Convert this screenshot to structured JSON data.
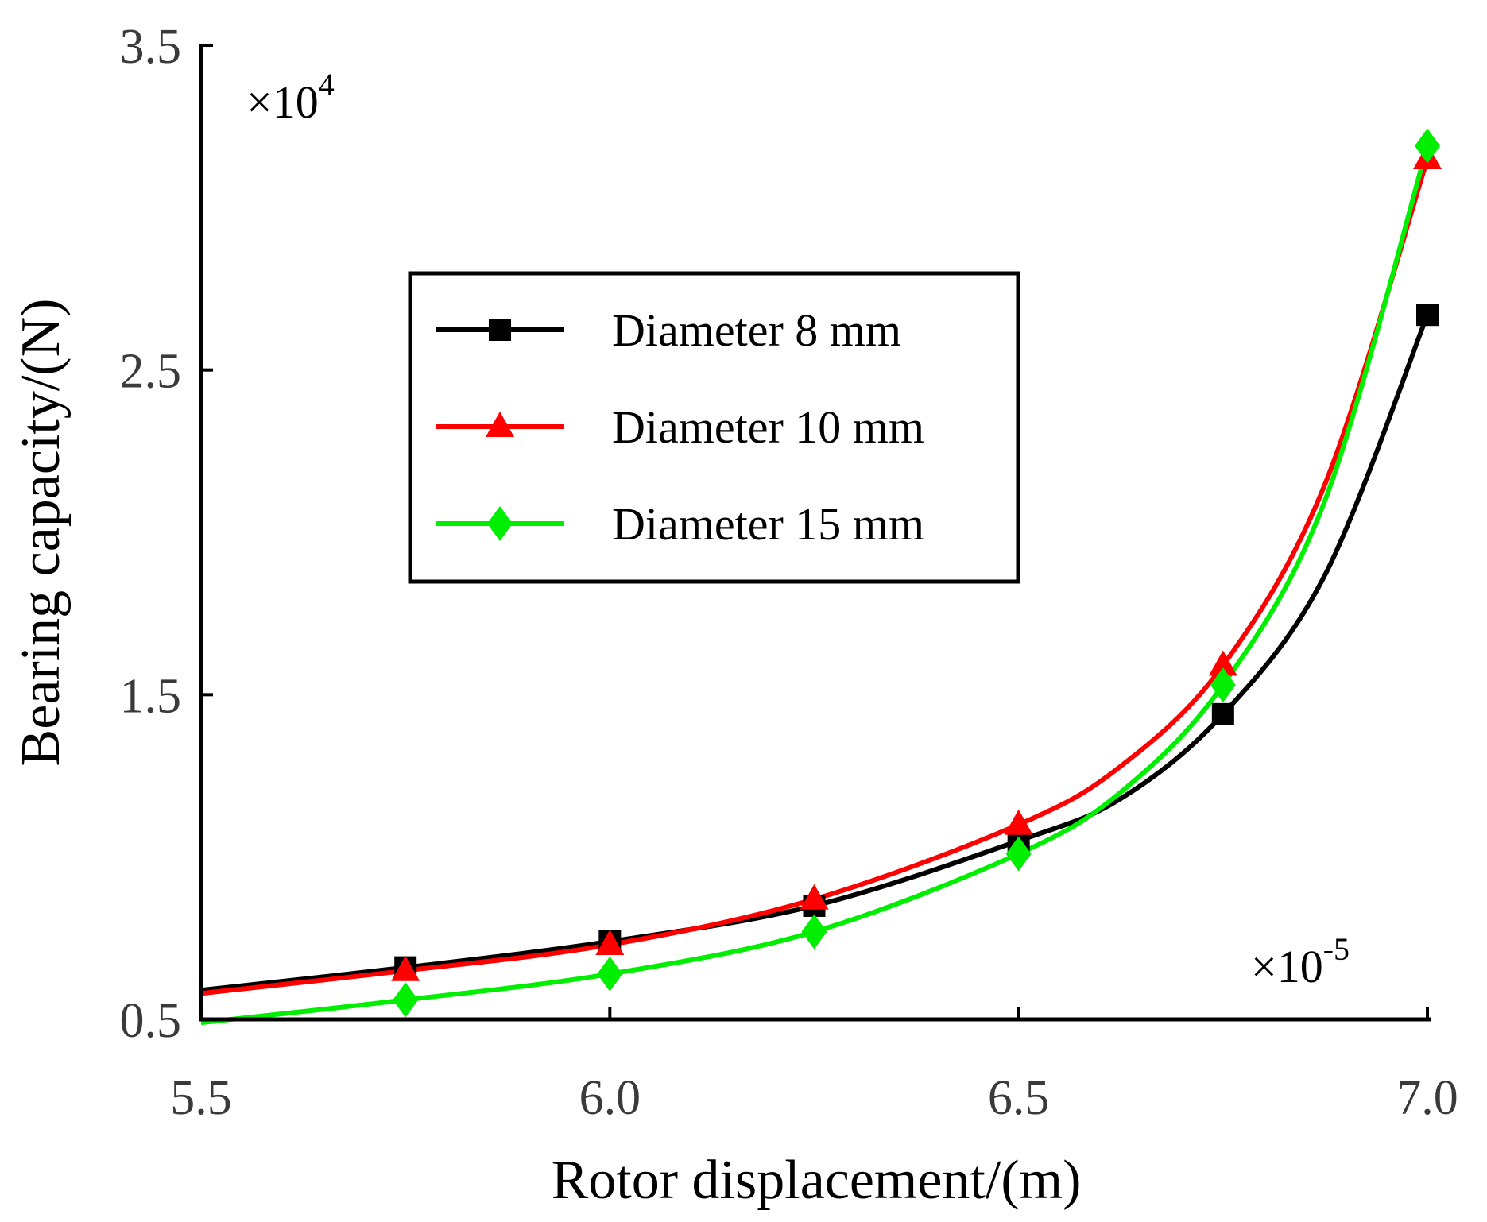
{
  "chart_data": {
    "type": "line",
    "title": "",
    "xlabel": "Rotor displacement/(m)",
    "ylabel": "Bearing capacity/(N)",
    "x_multiplier": "×10-5",
    "x_multiplier_base": "×10",
    "x_multiplier_exp": "-5",
    "y_multiplier": "×104",
    "y_multiplier_base": "×10",
    "y_multiplier_exp": "4",
    "xlim": [
      5.5,
      7.0
    ],
    "ylim": [
      0.5,
      3.5
    ],
    "xticks": [
      "5.5",
      "6.0",
      "6.5",
      "7.0"
    ],
    "yticks": [
      "0.5",
      "1.5",
      "2.5",
      "3.5"
    ],
    "legend_position": "center-left",
    "series": [
      {
        "name": "Diameter 8 mm",
        "color": "#000000",
        "marker": "square",
        "markers_x": [
          5.75,
          6.0,
          6.25,
          6.5,
          6.75,
          7.0
        ],
        "markers_y": [
          0.66,
          0.74,
          0.85,
          1.05,
          1.44,
          2.67
        ],
        "curve_x": [
          5.5,
          5.75,
          6.0,
          6.25,
          6.5,
          6.625,
          6.75,
          6.875,
          7.0
        ],
        "curve_y": [
          0.59,
          0.66,
          0.74,
          0.85,
          1.05,
          1.18,
          1.44,
          1.87,
          2.67
        ]
      },
      {
        "name": "Diameter 10 mm",
        "color": "#ff0000",
        "marker": "triangle",
        "markers_x": [
          5.75,
          6.0,
          6.25,
          6.5,
          6.75,
          7.0
        ],
        "markers_y": [
          0.65,
          0.73,
          0.87,
          1.1,
          1.59,
          3.15
        ],
        "curve_x": [
          5.5,
          5.75,
          6.0,
          6.25,
          6.5,
          6.625,
          6.75,
          6.875,
          7.0
        ],
        "curve_y": [
          0.58,
          0.65,
          0.73,
          0.87,
          1.1,
          1.28,
          1.59,
          2.15,
          3.15
        ]
      },
      {
        "name": "Diameter 15 mm",
        "color": "#00ee00",
        "marker": "diamond",
        "markers_x": [
          5.75,
          6.0,
          6.25,
          6.5,
          6.75,
          7.0
        ],
        "markers_y": [
          0.56,
          0.64,
          0.77,
          1.01,
          1.53,
          3.19
        ],
        "curve_x": [
          5.5,
          5.75,
          6.0,
          6.25,
          6.5,
          6.625,
          6.75,
          6.875,
          7.0
        ],
        "curve_y": [
          0.49,
          0.56,
          0.64,
          0.77,
          1.01,
          1.2,
          1.53,
          2.1,
          3.19
        ]
      }
    ]
  }
}
